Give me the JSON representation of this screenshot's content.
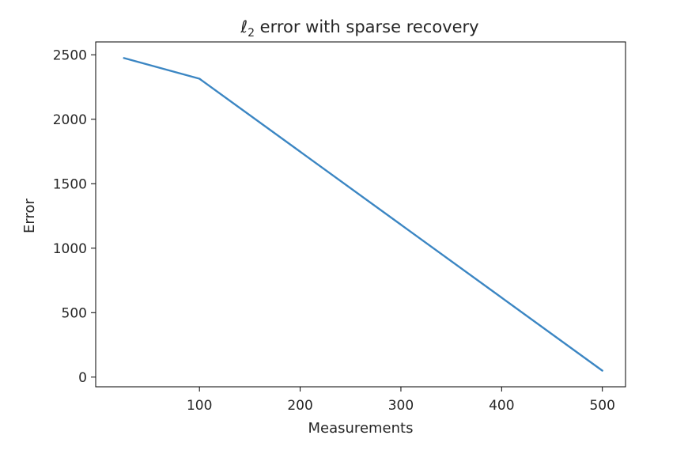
{
  "chart_data": {
    "type": "line",
    "title_symbol": "ℓ",
    "title_subscript": "2",
    "title_rest": " error with sparse recovery",
    "xlabel": "Measurements",
    "ylabel": "Error",
    "xlim": [
      -3,
      523
    ],
    "ylim": [
      -75,
      2600
    ],
    "xticks": [
      100,
      200,
      300,
      400,
      500
    ],
    "xtick_labels": [
      "100",
      "200",
      "300",
      "400",
      "500"
    ],
    "yticks": [
      0,
      500,
      1000,
      1500,
      2000,
      2500
    ],
    "ytick_labels": [
      "0",
      "500",
      "1000",
      "1500",
      "2000",
      "2500"
    ],
    "grid": false,
    "series": [
      {
        "color": "#3b86c3",
        "x": [
          25,
          100,
          500
        ],
        "y": [
          2475,
          2315,
          50
        ]
      }
    ]
  }
}
